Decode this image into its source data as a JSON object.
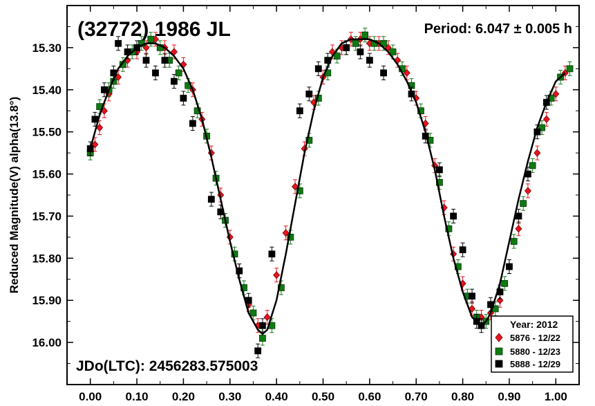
{
  "chart_data": {
    "type": "scatter",
    "title": "(32772) 1986 JL",
    "period_label": "Period: 6.047 ± 0.005 h",
    "jdo_label": "JDo(LTC): 2456283.575003",
    "ylabel": "Reduced Magnitude(V) alpha(13.8°)",
    "xlabel": "",
    "xlim": [
      -0.05,
      1.05
    ],
    "ylim": [
      16.1,
      15.2
    ],
    "y_reversed": true,
    "x_ticks": [
      "0.00",
      "0.10",
      "0.20",
      "0.30",
      "0.40",
      "0.50",
      "0.60",
      "0.70",
      "0.80",
      "0.90",
      "1.00"
    ],
    "x_tick_values": [
      0.0,
      0.1,
      0.2,
      0.3,
      0.4,
      0.5,
      0.6,
      0.7,
      0.8,
      0.9,
      1.0
    ],
    "y_ticks": [
      "15.30",
      "15.40",
      "15.50",
      "15.60",
      "15.70",
      "15.80",
      "15.90",
      "16.00"
    ],
    "y_tick_values": [
      15.3,
      15.4,
      15.5,
      15.6,
      15.7,
      15.8,
      15.9,
      16.0
    ],
    "grid": false,
    "legend": {
      "position": "bottom-right",
      "title": "Year: 2012",
      "entries": [
        {
          "label": "5876 - 12/22",
          "marker": "diamond",
          "color": "#e8141e"
        },
        {
          "label": "5880 - 12/23",
          "marker": "square",
          "color": "#0f7a12"
        },
        {
          "label": "5888 - 12/29",
          "marker": "square",
          "color": "#000000"
        }
      ]
    },
    "fit_curve": {
      "x": [
        0.0,
        0.02,
        0.04,
        0.06,
        0.08,
        0.1,
        0.12,
        0.14,
        0.16,
        0.18,
        0.2,
        0.22,
        0.24,
        0.26,
        0.28,
        0.3,
        0.32,
        0.34,
        0.36,
        0.37,
        0.38,
        0.4,
        0.42,
        0.44,
        0.46,
        0.48,
        0.5,
        0.52,
        0.54,
        0.56,
        0.58,
        0.6,
        0.62,
        0.64,
        0.66,
        0.68,
        0.7,
        0.72,
        0.74,
        0.76,
        0.78,
        0.8,
        0.82,
        0.84,
        0.85,
        0.86,
        0.88,
        0.9,
        0.92,
        0.94,
        0.96,
        0.98,
        1.0,
        1.02
      ],
      "y": [
        15.54,
        15.46,
        15.4,
        15.35,
        15.32,
        15.3,
        15.29,
        15.29,
        15.3,
        15.32,
        15.35,
        15.4,
        15.47,
        15.56,
        15.66,
        15.76,
        15.85,
        15.93,
        15.97,
        15.98,
        15.97,
        15.9,
        15.79,
        15.67,
        15.55,
        15.45,
        15.37,
        15.32,
        15.29,
        15.28,
        15.28,
        15.28,
        15.29,
        15.31,
        15.34,
        15.38,
        15.43,
        15.5,
        15.59,
        15.7,
        15.8,
        15.88,
        15.94,
        15.96,
        15.95,
        15.93,
        15.86,
        15.76,
        15.66,
        15.57,
        15.49,
        15.43,
        15.38,
        15.36
      ]
    },
    "series": [
      {
        "name": "5876 - 12/22",
        "marker": "diamond",
        "color": "#e8141e",
        "x": [
          0.01,
          0.02,
          0.03,
          0.04,
          0.06,
          0.08,
          0.1,
          0.12,
          0.14,
          0.16,
          0.18,
          0.2,
          0.22,
          0.24,
          0.26,
          0.28,
          0.3,
          0.32,
          0.34,
          0.36,
          0.38,
          0.4,
          0.42,
          0.44,
          0.46,
          0.48,
          0.5,
          0.52,
          0.54,
          0.56,
          0.58,
          0.6,
          0.62,
          0.64,
          0.66,
          0.68,
          0.7,
          0.72,
          0.74,
          0.76,
          0.78,
          0.8,
          0.82,
          0.84,
          0.86,
          0.88,
          0.9,
          0.92,
          0.94,
          0.96,
          0.98,
          1.0,
          1.02
        ],
        "y": [
          15.53,
          15.49,
          15.45,
          15.41,
          15.37,
          15.33,
          15.31,
          15.3,
          15.28,
          15.3,
          15.31,
          15.34,
          15.4,
          15.47,
          15.55,
          15.65,
          15.75,
          15.83,
          15.91,
          15.96,
          15.94,
          15.84,
          15.74,
          15.63,
          15.54,
          15.43,
          15.37,
          15.31,
          15.3,
          15.28,
          15.28,
          15.29,
          15.29,
          15.3,
          15.33,
          15.36,
          15.42,
          15.48,
          15.58,
          15.68,
          15.79,
          15.86,
          15.92,
          15.94,
          15.93,
          15.9,
          15.82,
          15.73,
          15.64,
          15.55,
          15.47,
          15.41,
          15.36
        ]
      },
      {
        "name": "5880 - 12/23",
        "marker": "square",
        "color": "#0f7a12",
        "x": [
          0.0,
          0.02,
          0.04,
          0.05,
          0.07,
          0.09,
          0.11,
          0.13,
          0.15,
          0.17,
          0.19,
          0.21,
          0.23,
          0.25,
          0.27,
          0.29,
          0.31,
          0.33,
          0.35,
          0.37,
          0.39,
          0.41,
          0.43,
          0.45,
          0.47,
          0.49,
          0.51,
          0.53,
          0.55,
          0.57,
          0.59,
          0.61,
          0.63,
          0.65,
          0.67,
          0.69,
          0.71,
          0.73,
          0.75,
          0.77,
          0.79,
          0.81,
          0.83,
          0.85,
          0.87,
          0.89,
          0.91,
          0.93,
          0.95,
          0.97,
          0.99,
          1.01,
          1.03
        ],
        "y": [
          15.55,
          15.44,
          15.4,
          15.38,
          15.34,
          15.31,
          15.29,
          15.28,
          15.3,
          15.33,
          15.36,
          15.39,
          15.45,
          15.51,
          15.61,
          15.71,
          15.79,
          15.87,
          15.93,
          15.99,
          15.96,
          15.87,
          15.75,
          15.64,
          15.52,
          15.42,
          15.36,
          15.32,
          15.3,
          15.29,
          15.27,
          15.29,
          15.29,
          15.31,
          15.35,
          15.39,
          15.45,
          15.52,
          15.62,
          15.73,
          15.82,
          15.89,
          15.94,
          15.95,
          15.92,
          15.86,
          15.76,
          15.67,
          15.58,
          15.49,
          15.42,
          15.37,
          15.35
        ]
      },
      {
        "name": "5888 - 12/29",
        "marker": "square",
        "color": "#000000",
        "x": [
          0.0,
          0.01,
          0.03,
          0.05,
          0.06,
          0.08,
          0.1,
          0.12,
          0.14,
          0.16,
          0.18,
          0.2,
          0.22,
          0.26,
          0.28,
          0.32,
          0.34,
          0.36,
          0.37,
          0.39,
          0.45,
          0.47,
          0.49,
          0.51,
          0.55,
          0.58,
          0.6,
          0.63,
          0.69,
          0.72,
          0.75,
          0.78,
          0.8,
          0.82,
          0.83,
          0.84,
          0.86,
          0.88,
          0.9,
          0.92,
          0.94,
          0.96,
          0.98
        ],
        "y": [
          15.54,
          15.47,
          15.4,
          15.36,
          15.29,
          15.31,
          15.3,
          15.33,
          15.36,
          15.33,
          15.38,
          15.42,
          15.48,
          15.66,
          15.69,
          15.83,
          15.9,
          16.02,
          15.96,
          15.79,
          15.45,
          15.41,
          15.35,
          15.33,
          15.3,
          15.31,
          15.33,
          15.36,
          15.41,
          15.51,
          15.59,
          15.7,
          15.78,
          15.89,
          15.95,
          15.96,
          15.91,
          15.88,
          15.82,
          15.7,
          15.6,
          15.5,
          15.43
        ]
      }
    ]
  }
}
